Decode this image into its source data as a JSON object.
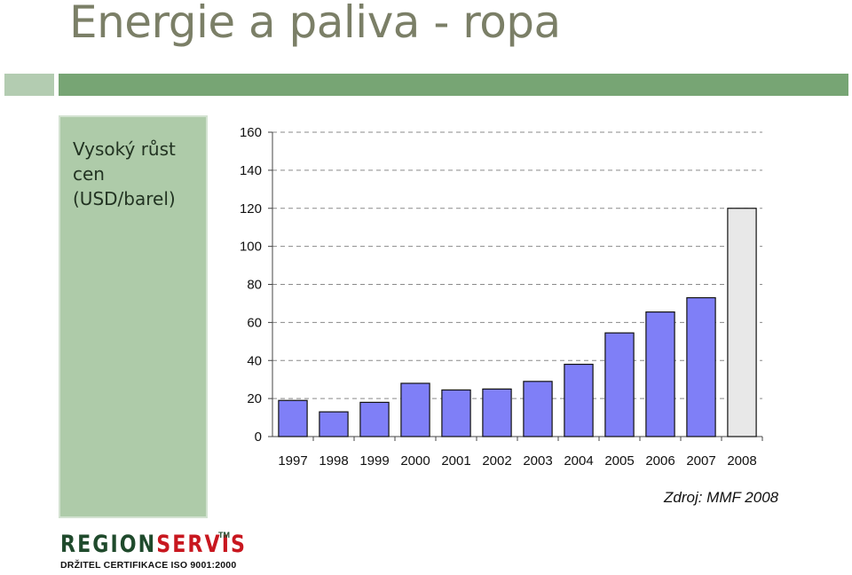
{
  "slide": {
    "title": "Energie a paliva - ropa",
    "sidebar_text": "Vysoký růst cen (USD/barel)",
    "source": "Zdroj: MMF 2008"
  },
  "logo": {
    "part1": "REGION",
    "part2": "SERVIS",
    "tm": "TM",
    "subtitle": "DRŽITEL CERTIFIKACE ISO 9001:2000",
    "colors": {
      "part1": "#1f4a2c",
      "part2": "#c8171f"
    }
  },
  "colors": {
    "title": "#7b7f67",
    "band_light": "#b3ccb1",
    "band_dark": "#77a574",
    "sidebar": "#aecba9",
    "bar": "#7f7ff7",
    "bar_highlight": "#e8e8e8"
  },
  "chart_data": {
    "type": "bar",
    "title": "",
    "xlabel": "",
    "ylabel": "",
    "categories": [
      "1997",
      "1998",
      "1999",
      "2000",
      "2001",
      "2002",
      "2003",
      "2004",
      "2005",
      "2006",
      "2007",
      "2008"
    ],
    "values": [
      19,
      13,
      18,
      28,
      24.5,
      25,
      29,
      38,
      54.5,
      65.5,
      73,
      120
    ],
    "highlight_last": true,
    "ylim": [
      0,
      160
    ],
    "yticks": [
      0,
      20,
      40,
      60,
      80,
      100,
      120,
      140,
      160
    ],
    "grid": "dashed horizontal"
  }
}
